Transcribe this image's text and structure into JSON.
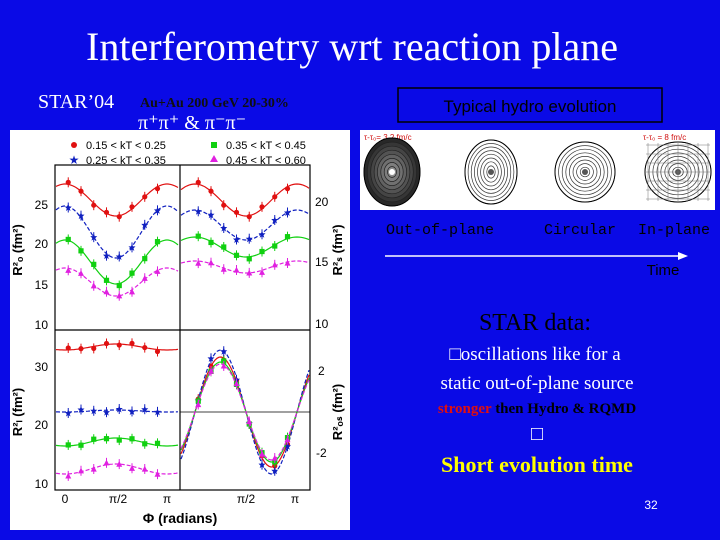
{
  "title": "Interferometry wrt reaction plane",
  "header": {
    "experiment": "STAR’04",
    "system": "Au+Au 200 GeV  20-30%",
    "particles": "π⁺π⁺ & π⁻π⁻"
  },
  "figure": {
    "legend": [
      "0.15 < kT < 0.25",
      "0.35 < kT < 0.45",
      "0.25 < kT < 0.35",
      "0.45 < kT < 0.60"
    ],
    "panels": [
      {
        "ylabel": "R²ₒ (fm²)",
        "yticks": [
          "25",
          "20",
          "15",
          "10"
        ]
      },
      {
        "ylabel": "R²ₛ (fm²)",
        "yticks": [
          "20",
          "15",
          "10"
        ]
      },
      {
        "ylabel": "R²ₗ (fm²)",
        "yticks": [
          "30",
          "20",
          "10"
        ]
      },
      {
        "ylabel": "R²ₒₛ (fm²)",
        "yticks": [
          "2",
          "-2"
        ]
      }
    ],
    "xticks_left": [
      "0",
      "π/2",
      "π"
    ],
    "xticks_right": [
      "π/2",
      "π"
    ],
    "xlabel": "Φ (radians)"
  },
  "hydro": {
    "title": "Typical hydro evolution",
    "time_labels": [
      "τ-τ₀= 3.2 fm/c",
      "τ-τ₀ = 8 fm/c"
    ],
    "shapes": [
      "Out-of-plane",
      "Circular",
      "In-plane"
    ],
    "axis": "Time"
  },
  "notes": {
    "heading": "STAR data:",
    "line1": "□oscillations like for a",
    "line2": "static out-of-plane source",
    "line3": {
      "highlight": "stronger",
      "rest": " then Hydro & RQMD"
    },
    "bullet": "□",
    "conclusion": "Short evolution time"
  },
  "page_number": "32"
}
